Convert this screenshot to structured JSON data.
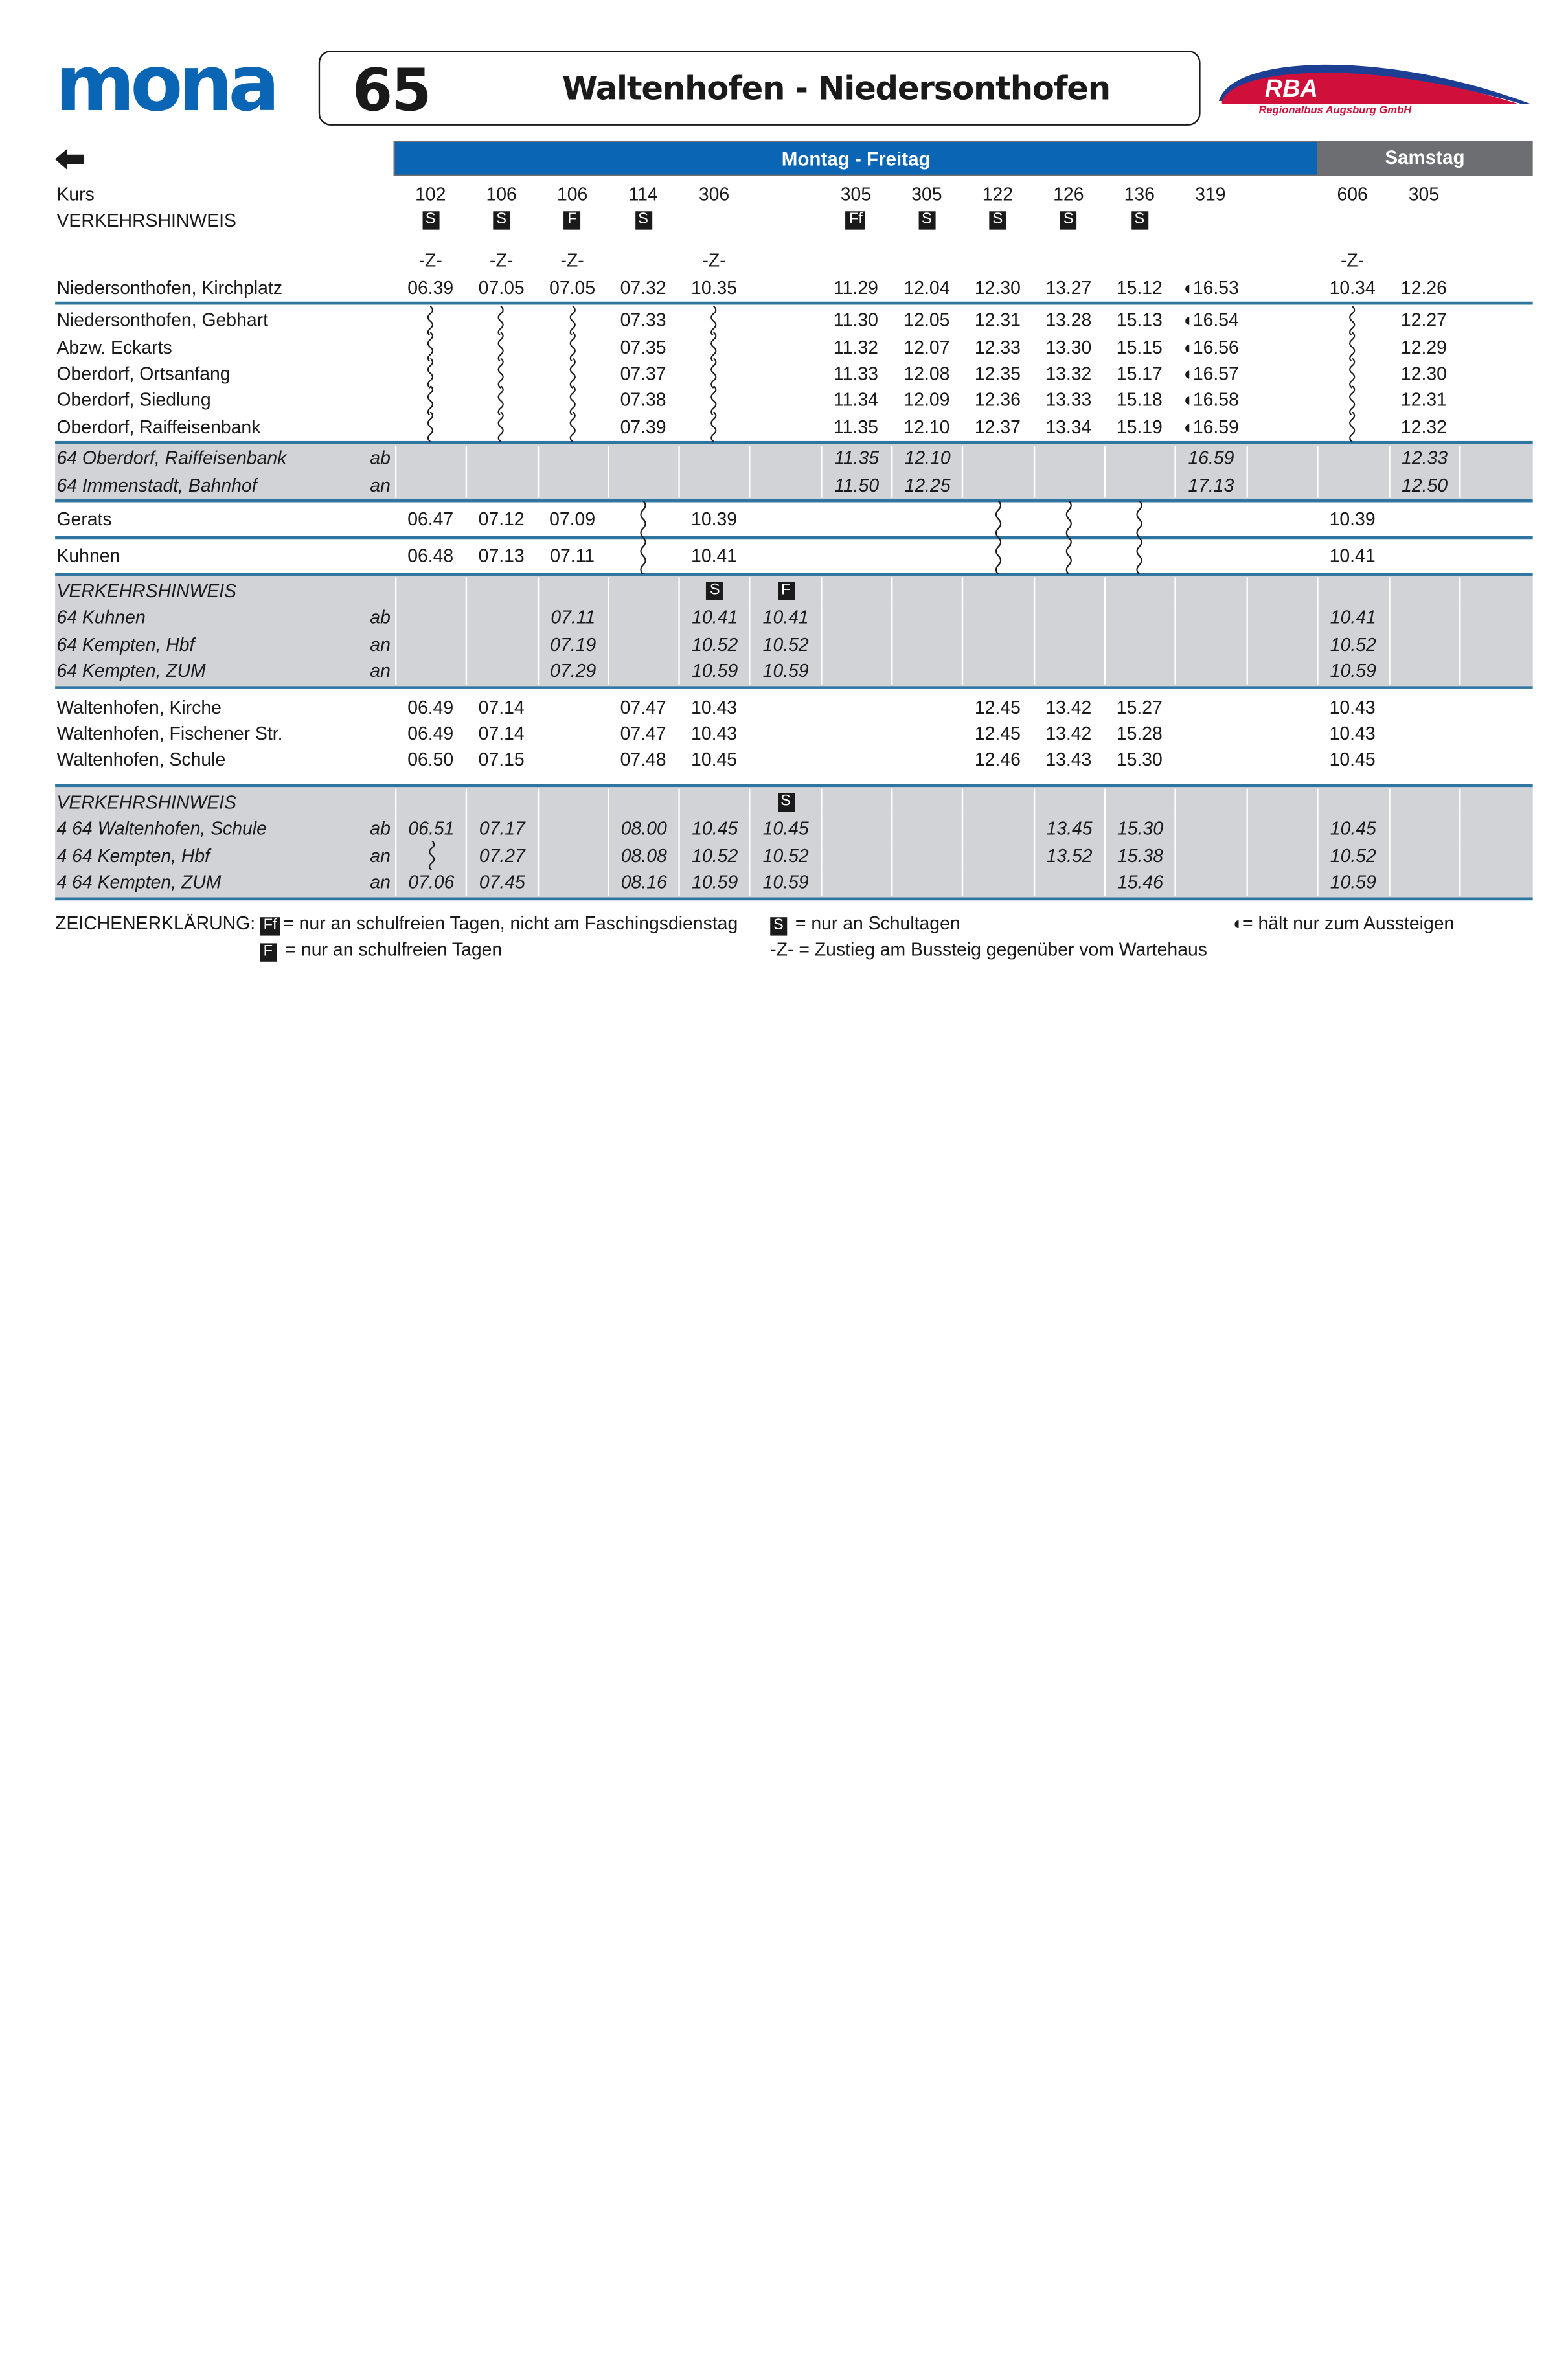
{
  "header": {
    "logo_left": "mona",
    "line_number": "65",
    "route_title": "Waltenhofen - Niedersonthofen",
    "logo_right": "RBA",
    "logo_right_sub": "Regionalbus Augsburg GmbH",
    "back_icon": "arrow-left-icon",
    "days_weekday": "Montag - Freitag",
    "days_saturday": "Samstag"
  },
  "colors": {
    "brand_blue": "#0a66b4",
    "saturday_gray": "#6d6e71",
    "rule_blue": "#2e76a0",
    "section_gray": "#d1d3d6",
    "rba_red": "#d0103a"
  },
  "table": {
    "head_rows": [
      {
        "name": "Kurs",
        "type": "plain",
        "cells": [
          "102",
          "106",
          "106",
          "114",
          "306",
          "",
          "305",
          "305",
          "122",
          "126",
          "136",
          "319",
          "",
          "606",
          "305",
          ""
        ]
      },
      {
        "name": "VERKEHRSHINWEIS",
        "type": "hinweis",
        "cells": [
          "S",
          "S",
          "F",
          "S",
          "",
          "",
          "Ff",
          "S",
          "S",
          "S",
          "S",
          "",
          "",
          "",
          "",
          ""
        ]
      },
      {
        "name": "",
        "type": "plain",
        "cells": [
          "-Z-",
          "-Z-",
          "-Z-",
          "",
          "-Z-",
          "",
          "",
          "",
          "",
          "",
          "",
          "",
          "",
          "-Z-",
          "",
          ""
        ]
      },
      {
        "name": "Niedersonthofen, Kirchplatz",
        "type": "plain",
        "cells": [
          "06.39",
          "07.05",
          "07.05",
          "07.32",
          "10.35",
          "",
          "11.29",
          "12.04",
          "12.30",
          "13.27",
          "15.12",
          "◖16.53",
          "",
          "10.34",
          "12.26",
          ""
        ]
      }
    ],
    "sections": [
      {
        "style": "white",
        "rows": [
          {
            "name": "Niedersonthofen, Gebhart",
            "cells": [
              "~",
              "~",
              "~",
              "07.33",
              "~",
              "",
              "11.30",
              "12.05",
              "12.31",
              "13.28",
              "15.13",
              "◖16.54",
              "",
              "~",
              "12.27",
              ""
            ]
          },
          {
            "name": "Abzw. Eckarts",
            "cells": [
              "~",
              "~",
              "~",
              "07.35",
              "~",
              "",
              "11.32",
              "12.07",
              "12.33",
              "13.30",
              "15.15",
              "◖16.56",
              "",
              "~",
              "12.29",
              ""
            ]
          },
          {
            "name": "Oberdorf, Ortsanfang",
            "cells": [
              "~",
              "~",
              "~",
              "07.37",
              "~",
              "",
              "11.33",
              "12.08",
              "12.35",
              "13.32",
              "15.17",
              "◖16.57",
              "",
              "~",
              "12.30",
              ""
            ]
          },
          {
            "name": "Oberdorf, Siedlung",
            "cells": [
              "~",
              "~",
              "~",
              "07.38",
              "~",
              "",
              "11.34",
              "12.09",
              "12.36",
              "13.33",
              "15.18",
              "◖16.58",
              "",
              "~",
              "12.31",
              ""
            ]
          },
          {
            "name": "Oberdorf, Raiffeisenbank",
            "cells": [
              "~",
              "~",
              "~",
              "07.39",
              "~",
              "",
              "11.35",
              "12.10",
              "12.37",
              "13.34",
              "15.19",
              "◖16.59",
              "",
              "~",
              "12.32",
              ""
            ]
          }
        ]
      },
      {
        "style": "gray",
        "rows": [
          {
            "name": "64 Oberdorf, Raiffeisenbank",
            "dir": "ab",
            "cells": [
              "",
              "",
              "",
              "",
              "",
              "",
              "11.35",
              "12.10",
              "",
              "",
              "",
              "16.59",
              "",
              "",
              "12.33",
              ""
            ]
          },
          {
            "name": "64 Immenstadt, Bahnhof",
            "dir": "an",
            "cells": [
              "",
              "",
              "",
              "",
              "",
              "",
              "11.50",
              "12.25",
              "",
              "",
              "",
              "17.13",
              "",
              "",
              "12.50",
              ""
            ]
          }
        ]
      },
      {
        "style": "white-tall",
        "rows": [
          {
            "name": "Gerats",
            "cells": [
              "06.47",
              "07.12",
              "07.09",
              "~",
              "10.39",
              "",
              "",
              "",
              "~",
              "~",
              "~",
              "",
              "",
              "10.39",
              "",
              ""
            ]
          }
        ]
      },
      {
        "style": "white-tall",
        "rows": [
          {
            "name": "Kuhnen",
            "cells": [
              "06.48",
              "07.13",
              "07.11",
              "~",
              "10.41",
              "",
              "",
              "",
              "~",
              "~",
              "~",
              "",
              "",
              "10.41",
              "",
              ""
            ]
          }
        ]
      },
      {
        "style": "gray",
        "rows": [
          {
            "name": "VERKEHRSHINWEIS",
            "type": "hinweis",
            "cells": [
              "",
              "",
              "",
              "",
              "S",
              "F",
              "",
              "",
              "",
              "",
              "",
              "",
              "",
              "",
              "",
              ""
            ]
          },
          {
            "name": "64 Kuhnen",
            "dir": "ab",
            "cells": [
              "",
              "",
              "07.11",
              "",
              "10.41",
              "10.41",
              "",
              "",
              "",
              "",
              "",
              "",
              "",
              "10.41",
              "",
              ""
            ]
          },
          {
            "name": "64 Kempten, Hbf",
            "dir": "an",
            "cells": [
              "",
              "",
              "07.19",
              "",
              "10.52",
              "10.52",
              "",
              "",
              "",
              "",
              "",
              "",
              "",
              "10.52",
              "",
              ""
            ]
          },
          {
            "name": "64 Kempten, ZUM",
            "dir": "an",
            "cells": [
              "",
              "",
              "07.29",
              "",
              "10.59",
              "10.59",
              "",
              "",
              "",
              "",
              "",
              "",
              "",
              "10.59",
              "",
              ""
            ]
          }
        ]
      },
      {
        "style": "white-pad",
        "rows": [
          {
            "name": "Waltenhofen, Kirche",
            "cells": [
              "06.49",
              "07.14",
              "",
              "07.47",
              "10.43",
              "",
              "",
              "",
              "12.45",
              "13.42",
              "15.27",
              "",
              "",
              "10.43",
              "",
              ""
            ]
          },
          {
            "name": "Waltenhofen, Fischener Str.",
            "cells": [
              "06.49",
              "07.14",
              "",
              "07.47",
              "10.43",
              "",
              "",
              "",
              "12.45",
              "13.42",
              "15.28",
              "",
              "",
              "10.43",
              "",
              ""
            ]
          },
          {
            "name": "Waltenhofen, Schule",
            "cells": [
              "06.50",
              "07.15",
              "",
              "07.48",
              "10.45",
              "",
              "",
              "",
              "12.46",
              "13.43",
              "15.30",
              "",
              "",
              "10.45",
              "",
              ""
            ]
          }
        ]
      },
      {
        "style": "gray",
        "rows": [
          {
            "name": "VERKEHRSHINWEIS",
            "type": "hinweis",
            "cells": [
              "",
              "",
              "",
              "",
              "",
              "S",
              "",
              "",
              "",
              "",
              "",
              "",
              "",
              "",
              "",
              ""
            ]
          },
          {
            "name": "4 64 Waltenhofen, Schule",
            "dir": "ab",
            "cells": [
              "06.51",
              "07.17",
              "",
              "08.00",
              "10.45",
              "10.45",
              "",
              "",
              "",
              "13.45",
              "15.30",
              "",
              "",
              "10.45",
              "",
              ""
            ]
          },
          {
            "name": "4 64 Kempten, Hbf",
            "dir": "an",
            "cells": [
              "~",
              "07.27",
              "",
              "08.08",
              "10.52",
              "10.52",
              "",
              "",
              "",
              "13.52",
              "15.38",
              "",
              "",
              "10.52",
              "",
              ""
            ]
          },
          {
            "name": "4 64 Kempten, ZUM",
            "dir": "an",
            "cells": [
              "07.06",
              "07.45",
              "",
              "08.16",
              "10.59",
              "10.59",
              "",
              "",
              "",
              "",
              "15.46",
              "",
              "",
              "10.59",
              "",
              ""
            ]
          }
        ]
      }
    ]
  },
  "legend": {
    "title": "ZEICHENERKLÄRUNG:",
    "items": [
      {
        "symbol": "Ff",
        "text": "= nur an schulfreien Tagen, nicht am Faschingsdienstag"
      },
      {
        "symbol": "S",
        "text": "= nur an Schultagen"
      },
      {
        "symbol": "◖",
        "text": "= hält nur zum Aussteigen"
      },
      {
        "symbol": "F",
        "text": "= nur an schulfreien Tagen"
      },
      {
        "symbol": "-Z-",
        "text": "= Zustieg am Bussteig gegenüber vom Wartehaus"
      }
    ]
  }
}
